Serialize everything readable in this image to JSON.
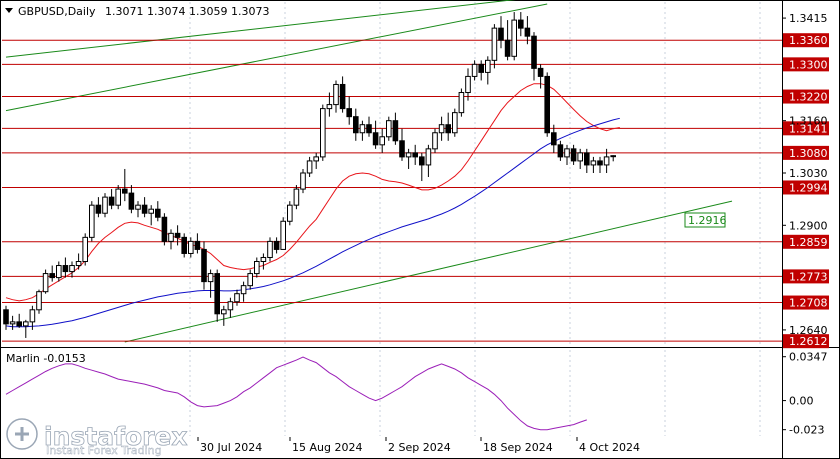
{
  "header": {
    "symbol": "GBPUSD,Daily",
    "ohlc": "1.3071 1.3074 1.3059 1.3073"
  },
  "indicator": {
    "label": "Marlin -0.0153",
    "ticks": [
      "0.0347",
      "0.00",
      "-0.023"
    ]
  },
  "watermark": {
    "brand": "instaforex",
    "tagline": "Instant Forex Trading"
  },
  "colors": {
    "background": "#ffffff",
    "grid": "#c8d0dc",
    "candle": "#000000",
    "level_line": "#c00000",
    "level_tag": "#c00000",
    "ma_red": "#e8151b",
    "ma_blue": "#1010c8",
    "channel": "#1a8a1a",
    "oscillator": "#9b1fb8",
    "green_tag_bg": "#ffffff",
    "green_tag_text": "#1a8a1a"
  },
  "chart_data": {
    "type": "candlestick",
    "price_axis_ticks": [
      "1.3415",
      "1.3160",
      "1.3030",
      "1.2900",
      "1.2640"
    ],
    "levels": [
      "1.3360",
      "1.3300",
      "1.3220",
      "1.3141",
      "1.3080",
      "1.2994",
      "1.2859",
      "1.2773",
      "1.2708",
      "1.2612"
    ],
    "channel_tag": "1.2916",
    "x_labels": [
      "30 Jul 2024",
      "15 Aug 2024",
      "2 Sep 2024",
      "18 Sep 2024",
      "4 Oct 2024"
    ],
    "ylim": [
      1.26,
      1.345
    ],
    "candles": [
      [
        1.269,
        1.27,
        1.264,
        1.2655
      ],
      [
        1.2655,
        1.2675,
        1.264,
        1.266
      ],
      [
        1.266,
        1.268,
        1.2645,
        1.265
      ],
      [
        1.265,
        1.2665,
        1.262,
        1.266
      ],
      [
        1.266,
        1.27,
        1.264,
        1.269
      ],
      [
        1.269,
        1.274,
        1.268,
        1.2735
      ],
      [
        1.2735,
        1.279,
        1.273,
        1.278
      ],
      [
        1.278,
        1.28,
        1.276,
        1.277
      ],
      [
        1.277,
        1.281,
        1.276,
        1.28
      ],
      [
        1.28,
        1.282,
        1.277,
        1.2785
      ],
      [
        1.2785,
        1.281,
        1.277,
        1.28
      ],
      [
        1.28,
        1.283,
        1.279,
        1.281
      ],
      [
        1.281,
        1.288,
        1.28,
        1.287
      ],
      [
        1.287,
        1.296,
        1.286,
        1.295
      ],
      [
        1.295,
        1.297,
        1.292,
        1.293
      ],
      [
        1.293,
        1.298,
        1.292,
        1.297
      ],
      [
        1.297,
        1.299,
        1.294,
        1.295
      ],
      [
        1.295,
        1.3,
        1.294,
        1.299
      ],
      [
        1.299,
        1.304,
        1.296,
        1.298
      ],
      [
        1.298,
        1.3,
        1.293,
        1.294
      ],
      [
        1.294,
        1.296,
        1.292,
        1.295
      ],
      [
        1.295,
        1.297,
        1.292,
        1.293
      ],
      [
        1.293,
        1.295,
        1.29,
        1.294
      ],
      [
        1.294,
        1.296,
        1.291,
        1.292
      ],
      [
        1.292,
        1.293,
        1.285,
        1.286
      ],
      [
        1.286,
        1.289,
        1.284,
        1.288
      ],
      [
        1.288,
        1.29,
        1.285,
        1.287
      ],
      [
        1.287,
        1.288,
        1.282,
        1.283
      ],
      [
        1.283,
        1.287,
        1.282,
        1.286
      ],
      [
        1.286,
        1.288,
        1.283,
        1.284
      ],
      [
        1.284,
        1.286,
        1.274,
        1.276
      ],
      [
        1.276,
        1.279,
        1.272,
        1.278
      ],
      [
        1.278,
        1.279,
        1.266,
        1.268
      ],
      [
        1.268,
        1.27,
        1.265,
        1.269
      ],
      [
        1.269,
        1.272,
        1.267,
        1.271
      ],
      [
        1.271,
        1.274,
        1.27,
        1.273
      ],
      [
        1.273,
        1.276,
        1.271,
        1.275
      ],
      [
        1.275,
        1.279,
        1.274,
        1.278
      ],
      [
        1.278,
        1.282,
        1.277,
        1.281
      ],
      [
        1.281,
        1.283,
        1.279,
        1.282
      ],
      [
        1.282,
        1.287,
        1.281,
        1.286
      ],
      [
        1.286,
        1.287,
        1.283,
        1.284
      ],
      [
        1.284,
        1.292,
        1.284,
        1.291
      ],
      [
        1.291,
        1.296,
        1.29,
        1.295
      ],
      [
        1.295,
        1.3,
        1.294,
        1.299
      ],
      [
        1.299,
        1.304,
        1.298,
        1.303
      ],
      [
        1.303,
        1.307,
        1.302,
        1.306
      ],
      [
        1.306,
        1.308,
        1.304,
        1.307
      ],
      [
        1.307,
        1.32,
        1.306,
        1.319
      ],
      [
        1.319,
        1.323,
        1.317,
        1.32
      ],
      [
        1.32,
        1.326,
        1.318,
        1.325
      ],
      [
        1.325,
        1.327,
        1.318,
        1.319
      ],
      [
        1.319,
        1.322,
        1.315,
        1.317
      ],
      [
        1.317,
        1.319,
        1.311,
        1.313
      ],
      [
        1.313,
        1.316,
        1.311,
        1.315
      ],
      [
        1.315,
        1.317,
        1.312,
        1.313
      ],
      [
        1.313,
        1.316,
        1.309,
        1.31
      ],
      [
        1.31,
        1.314,
        1.308,
        1.312
      ],
      [
        1.312,
        1.317,
        1.311,
        1.316
      ],
      [
        1.316,
        1.318,
        1.31,
        1.311
      ],
      [
        1.311,
        1.314,
        1.306,
        1.307
      ],
      [
        1.307,
        1.309,
        1.304,
        1.308
      ],
      [
        1.308,
        1.31,
        1.305,
        1.307
      ],
      [
        1.307,
        1.308,
        1.301,
        1.305
      ],
      [
        1.305,
        1.31,
        1.302,
        1.309
      ],
      [
        1.309,
        1.314,
        1.308,
        1.313
      ],
      [
        1.313,
        1.317,
        1.311,
        1.315
      ],
      [
        1.315,
        1.318,
        1.311,
        1.313
      ],
      [
        1.313,
        1.319,
        1.312,
        1.318
      ],
      [
        1.318,
        1.324,
        1.317,
        1.323
      ],
      [
        1.323,
        1.329,
        1.321,
        1.327
      ],
      [
        1.327,
        1.331,
        1.326,
        1.33
      ],
      [
        1.33,
        1.331,
        1.326,
        1.328
      ],
      [
        1.328,
        1.332,
        1.325,
        1.331
      ],
      [
        1.331,
        1.34,
        1.329,
        1.339
      ],
      [
        1.339,
        1.342,
        1.334,
        1.336
      ],
      [
        1.336,
        1.341,
        1.331,
        1.332
      ],
      [
        1.332,
        1.343,
        1.331,
        1.341
      ],
      [
        1.341,
        1.343,
        1.337,
        1.339
      ],
      [
        1.339,
        1.342,
        1.335,
        1.337
      ],
      [
        1.337,
        1.338,
        1.326,
        1.329
      ],
      [
        1.329,
        1.33,
        1.324,
        1.327
      ],
      [
        1.327,
        1.328,
        1.312,
        1.313
      ],
      [
        1.313,
        1.315,
        1.308,
        1.31
      ],
      [
        1.31,
        1.311,
        1.306,
        1.307
      ],
      [
        1.307,
        1.31,
        1.305,
        1.309
      ],
      [
        1.309,
        1.31,
        1.305,
        1.306
      ],
      [
        1.306,
        1.309,
        1.304,
        1.308
      ],
      [
        1.308,
        1.309,
        1.303,
        1.305
      ],
      [
        1.305,
        1.307,
        1.303,
        1.306
      ],
      [
        1.306,
        1.307,
        1.303,
        1.305
      ],
      [
        1.305,
        1.309,
        1.303,
        1.307
      ],
      [
        1.3071,
        1.3074,
        1.3059,
        1.3073
      ]
    ],
    "ma_red": [
      1.272,
      1.2715,
      1.2712,
      1.2715,
      1.272,
      1.273,
      1.2742,
      1.2752,
      1.2762,
      1.2772,
      1.2782,
      1.2795,
      1.2812,
      1.2835,
      1.2855,
      1.287,
      1.2882,
      1.2895,
      1.2905,
      1.2908,
      1.2906,
      1.29,
      1.2895,
      1.289,
      1.2882,
      1.2875,
      1.2868,
      1.286,
      1.2852,
      1.2848,
      1.284,
      1.283,
      1.2815,
      1.28,
      1.2795,
      1.2792,
      1.279,
      1.2792,
      1.2796,
      1.28,
      1.2808,
      1.2815,
      1.2825,
      1.284,
      1.2858,
      1.2878,
      1.2898,
      1.2915,
      1.294,
      1.2965,
      1.299,
      1.301,
      1.3022,
      1.3028,
      1.303,
      1.3028,
      1.3022,
      1.3014,
      1.301,
      1.3008,
      1.3005,
      1.3,
      1.2994,
      1.2988,
      1.2988,
      1.2992,
      1.3,
      1.301,
      1.3022,
      1.3038,
      1.306,
      1.3085,
      1.311,
      1.3135,
      1.316,
      1.3185,
      1.3205,
      1.322,
      1.3235,
      1.3245,
      1.3252,
      1.3252,
      1.3248,
      1.3238,
      1.3222,
      1.3205,
      1.3188,
      1.3172,
      1.3158,
      1.3148,
      1.314,
      1.3135,
      1.314,
      1.3143
    ],
    "ma_blue": [
      1.265,
      1.2648,
      1.2648,
      1.2648,
      1.2649,
      1.265,
      1.2652,
      1.2654,
      1.2657,
      1.266,
      1.2663,
      1.2667,
      1.2671,
      1.2676,
      1.2681,
      1.2686,
      1.2691,
      1.2696,
      1.2701,
      1.2706,
      1.271,
      1.2714,
      1.2718,
      1.2722,
      1.2725,
      1.2728,
      1.2731,
      1.2733,
      1.2735,
      1.2737,
      1.2738,
      1.2738,
      1.2738,
      1.2737,
      1.2737,
      1.2738,
      1.274,
      1.2742,
      1.2745,
      1.2748,
      1.2752,
      1.2757,
      1.2762,
      1.2768,
      1.2775,
      1.2782,
      1.279,
      1.2798,
      1.2807,
      1.2816,
      1.2825,
      1.2834,
      1.2842,
      1.285,
      1.2858,
      1.2865,
      1.2872,
      1.2878,
      1.2884,
      1.289,
      1.2896,
      1.2901,
      1.2906,
      1.2911,
      1.2916,
      1.2922,
      1.2928,
      1.2935,
      1.2943,
      1.2952,
      1.2962,
      1.2972,
      1.2983,
      1.2994,
      1.3006,
      1.3018,
      1.303,
      1.3042,
      1.3054,
      1.3066,
      1.3078,
      1.309,
      1.31,
      1.3108,
      1.3116,
      1.3123,
      1.313,
      1.3136,
      1.3142,
      1.3147,
      1.3152,
      1.3157,
      1.3162,
      1.3166
    ],
    "channel_upper": [
      [
        0,
        1.3318
      ],
      [
        82,
        1.347
      ]
    ],
    "channel_upper2": [
      [
        0,
        1.3185
      ],
      [
        82,
        1.345
      ]
    ],
    "channel_lower": [
      [
        18,
        1.261
      ],
      [
        110,
        1.296
      ]
    ],
    "oscillator": [
      0.005,
      0.008,
      0.011,
      0.014,
      0.017,
      0.02,
      0.023,
      0.0255,
      0.0275,
      0.029,
      0.029,
      0.0275,
      0.0255,
      0.024,
      0.0225,
      0.021,
      0.019,
      0.017,
      0.016,
      0.015,
      0.014,
      0.013,
      0.0115,
      0.01,
      0.008,
      0.007,
      0.006,
      0.003,
      -0.001,
      -0.004,
      -0.005,
      -0.0045,
      -0.004,
      -0.002,
      0.0,
      0.003,
      0.007,
      0.01,
      0.014,
      0.018,
      0.022,
      0.026,
      0.028,
      0.03,
      0.032,
      0.0345,
      0.032,
      0.03,
      0.026,
      0.022,
      0.019,
      0.015,
      0.011,
      0.008,
      0.005,
      0.002,
      0.0,
      0.002,
      0.005,
      0.008,
      0.011,
      0.015,
      0.019,
      0.022,
      0.025,
      0.027,
      0.029,
      0.027,
      0.025,
      0.022,
      0.018,
      0.015,
      0.012,
      0.009,
      0.005,
      0.0,
      -0.006,
      -0.011,
      -0.016,
      -0.02,
      -0.022,
      -0.023,
      -0.023,
      -0.022,
      -0.021,
      -0.02,
      -0.019,
      -0.017,
      -0.0153
    ],
    "osc_ylim": [
      -0.028,
      0.04
    ]
  }
}
